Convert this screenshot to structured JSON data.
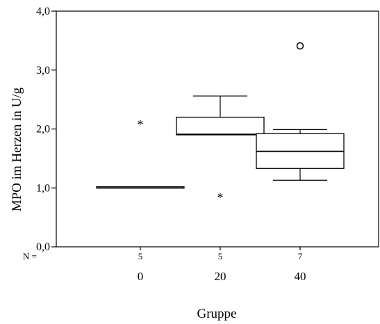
{
  "chart_data": {
    "type": "boxplot",
    "ylabel": "MPO im Herzen in U/g",
    "xlabel": "Gruppe",
    "ylim": [
      0,
      4
    ],
    "yticks": [
      {
        "value": 0,
        "label": "0,0"
      },
      {
        "value": 1,
        "label": "1,0"
      },
      {
        "value": 2,
        "label": "2,0"
      },
      {
        "value": 3,
        "label": "3,0"
      },
      {
        "value": 4,
        "label": "4,0"
      }
    ],
    "n_prefix": "N =",
    "groups": [
      {
        "category": "0",
        "n": "5",
        "whisker_low": 1.0,
        "q1": 1.0,
        "median": 1.0,
        "q3": 1.02,
        "whisker_high": 1.02,
        "outliers": [
          {
            "value": 2.1,
            "symbol": "*"
          }
        ]
      },
      {
        "category": "20",
        "n": "5",
        "whisker_low": 1.9,
        "q1": 1.9,
        "median": 1.91,
        "q3": 2.2,
        "whisker_high": 2.56,
        "outliers": [
          {
            "value": 0.86,
            "symbol": "*"
          }
        ]
      },
      {
        "category": "40",
        "n": "7",
        "whisker_low": 1.13,
        "q1": 1.33,
        "median": 1.62,
        "q3": 1.92,
        "whisker_high": 1.99,
        "outliers": [
          {
            "value": 3.41,
            "symbol": "o"
          }
        ]
      }
    ],
    "grid": false,
    "legend": "none"
  }
}
